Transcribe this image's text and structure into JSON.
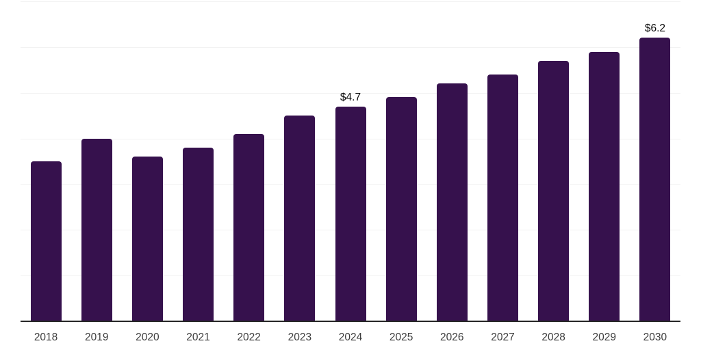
{
  "chart_data": {
    "type": "bar",
    "title": "",
    "xlabel": "",
    "ylabel": "",
    "categories": [
      "2018",
      "2019",
      "2020",
      "2021",
      "2022",
      "2023",
      "2024",
      "2025",
      "2026",
      "2027",
      "2028",
      "2029",
      "2030"
    ],
    "values": [
      3.5,
      4.0,
      3.6,
      3.8,
      4.1,
      4.5,
      4.7,
      4.9,
      5.2,
      5.4,
      5.7,
      5.9,
      6.2
    ],
    "bar_labels": [
      "",
      "",
      "",
      "",
      "",
      "",
      "$4.7",
      "",
      "",
      "",
      "",
      "",
      "$6.2"
    ],
    "ylim": [
      0,
      7
    ],
    "gridline_step": 1,
    "grid": true,
    "legend": "none",
    "colors": {
      "bar": "#36114D",
      "gridline": "#F2F2F2",
      "axis_line": "#262626",
      "tick_label": "#3D3D3D",
      "bar_label": "#0A0A0A",
      "background": "#FFFFFF"
    }
  }
}
